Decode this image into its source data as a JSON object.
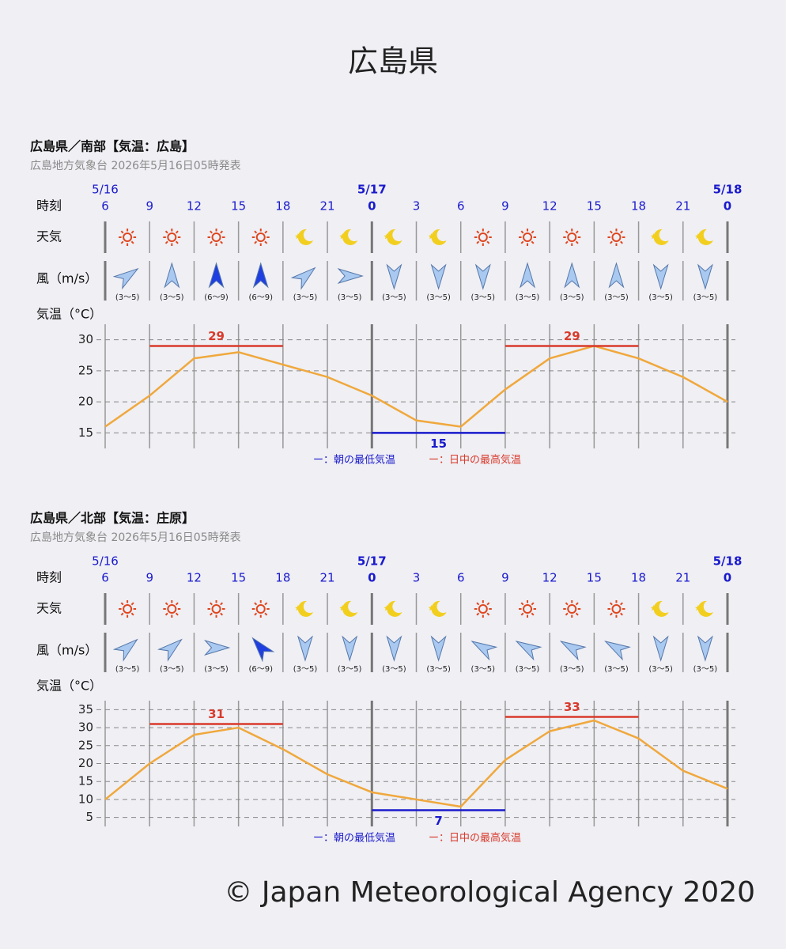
{
  "header": {
    "title": "広島県"
  },
  "chart_data": [
    {
      "type": "line",
      "title": "広島県／南部【気温：広島】",
      "subtitle": "広島地方気象台 2026年5月16日05時発表",
      "time_label": "時刻",
      "dates": [
        "5/16",
        null,
        null,
        null,
        null,
        null,
        "5/17",
        null,
        null,
        null,
        null,
        null,
        null,
        null,
        "5/18"
      ],
      "categories": [
        6,
        9,
        12,
        15,
        18,
        21,
        0,
        3,
        6,
        9,
        12,
        15,
        18,
        21,
        0
      ],
      "weather_label": "天気",
      "weather": [
        "sun",
        "sun",
        "sun",
        "sun",
        "moon",
        "moon",
        "moon",
        "moon",
        "sun",
        "sun",
        "sun",
        "sun",
        "moon",
        "moon"
      ],
      "wind_label": "風（m/s）",
      "wind_direction": [
        55,
        0,
        0,
        0,
        50,
        90,
        180,
        180,
        180,
        0,
        0,
        0,
        180,
        180
      ],
      "wind_colors": [
        "#a9c9f0",
        "#a9c9f0",
        "#1f3fe0",
        "#1f3fe0",
        "#a9c9f0",
        "#a9c9f0",
        "#a9c9f0",
        "#a9c9f0",
        "#a9c9f0",
        "#a9c9f0",
        "#a9c9f0",
        "#a9c9f0",
        "#a9c9f0",
        "#a9c9f0"
      ],
      "wind_labels": [
        "(3～5)",
        "(3～5)",
        "(6～9)",
        "(6～9)",
        "(3～5)",
        "(3～5)",
        "(3～5)",
        "(3～5)",
        "(3～5)",
        "(3～5)",
        "(3～5)",
        "(3～5)",
        "(3～5)",
        "(3～5)"
      ],
      "y_label": "気温（°C）",
      "values": [
        16,
        21,
        27,
        28,
        26,
        24,
        21,
        17,
        16,
        22,
        27,
        29,
        27,
        24,
        20
      ],
      "color": "#f0a83c",
      "ylim": [
        12.5,
        32.5
      ],
      "yticks": [
        15,
        20,
        25,
        30
      ],
      "grid": true,
      "lows": {
        "name": "ー：朝の最低気温",
        "color": "#1a1acc",
        "segments": [
          {
            "value": 15,
            "from": 6,
            "to": 9
          }
        ]
      },
      "highs": {
        "name": "ー：日中の最高気温",
        "color": "#d93a2b",
        "segments": [
          {
            "value": 29,
            "from": 1,
            "to": 4
          },
          {
            "value": 29,
            "from": 9,
            "to": 12
          }
        ]
      }
    },
    {
      "type": "line",
      "title": "広島県／北部【気温：庄原】",
      "subtitle": "広島地方気象台 2026年5月16日05時発表",
      "time_label": "時刻",
      "dates": [
        "5/16",
        null,
        null,
        null,
        null,
        null,
        "5/17",
        null,
        null,
        null,
        null,
        null,
        null,
        null,
        "5/18"
      ],
      "categories": [
        6,
        9,
        12,
        15,
        18,
        21,
        0,
        3,
        6,
        9,
        12,
        15,
        18,
        21,
        0
      ],
      "weather_label": "天気",
      "weather": [
        "sun",
        "sun",
        "sun",
        "sun",
        "moon",
        "moon",
        "moon",
        "moon",
        "sun",
        "sun",
        "sun",
        "sun",
        "moon",
        "moon"
      ],
      "wind_label": "風（m/s）",
      "wind_direction": [
        50,
        50,
        90,
        320,
        180,
        180,
        180,
        180,
        300,
        300,
        300,
        300,
        180,
        180
      ],
      "wind_colors": [
        "#a9c9f0",
        "#a9c9f0",
        "#a9c9f0",
        "#1f3fe0",
        "#a9c9f0",
        "#a9c9f0",
        "#a9c9f0",
        "#a9c9f0",
        "#a9c9f0",
        "#a9c9f0",
        "#a9c9f0",
        "#a9c9f0",
        "#a9c9f0",
        "#a9c9f0"
      ],
      "wind_labels": [
        "(3～5)",
        "(3～5)",
        "(3～5)",
        "(6～9)",
        "(3～5)",
        "(3～5)",
        "(3～5)",
        "(3～5)",
        "(3～5)",
        "(3～5)",
        "(3～5)",
        "(3～5)",
        "(3～5)",
        "(3～5)"
      ],
      "y_label": "気温（°C）",
      "values": [
        10,
        20,
        28,
        30,
        24,
        17,
        12,
        10,
        8,
        21,
        29,
        32,
        27,
        18,
        13
      ],
      "color": "#f0a83c",
      "ylim": [
        2.5,
        37.5
      ],
      "yticks": [
        5,
        10,
        15,
        20,
        25,
        30,
        35
      ],
      "grid": true,
      "lows": {
        "name": "ー：朝の最低気温",
        "color": "#1a1acc",
        "segments": [
          {
            "value": 7,
            "from": 6,
            "to": 9
          }
        ]
      },
      "highs": {
        "name": "ー：日中の最高気温",
        "color": "#d93a2b",
        "segments": [
          {
            "value": 31,
            "from": 1,
            "to": 4
          },
          {
            "value": 33,
            "from": 9,
            "to": 12
          }
        ]
      }
    }
  ],
  "footer": "© Japan Meteorological Agency 2020"
}
